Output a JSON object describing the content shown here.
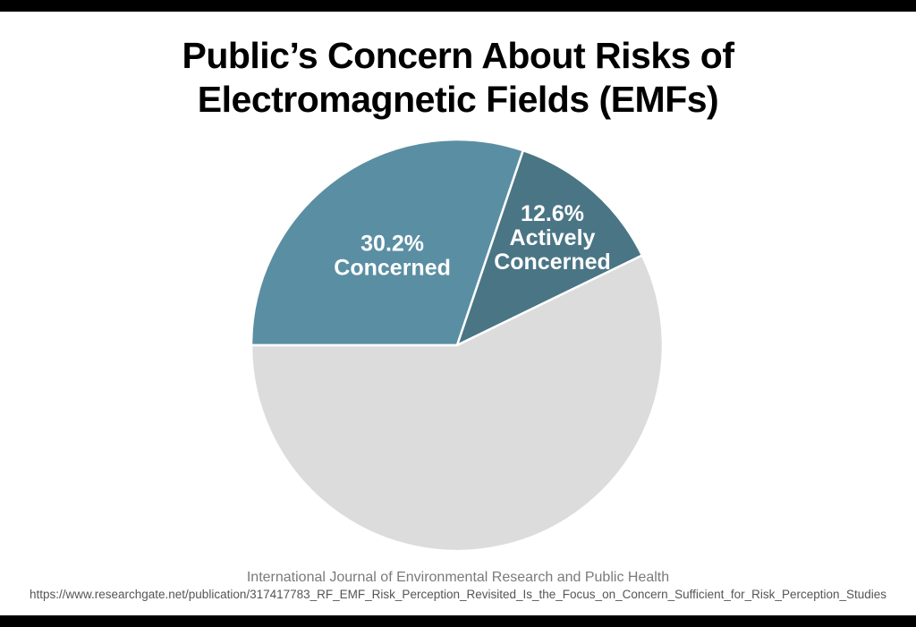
{
  "chart_data": {
    "type": "pie",
    "title_lines": [
      "Public’s Concern About Risks of",
      "Electromagnetic Fields (EMFs)"
    ],
    "slices": [
      {
        "value": 30.2,
        "label_lines": [
          "30.2%",
          "Concerned"
        ],
        "color": "#5a8ea3"
      },
      {
        "value": 12.6,
        "label_lines": [
          "12.6%",
          "Actively",
          "Concerned"
        ],
        "color": "#4a7585"
      },
      {
        "value": 57.2,
        "label_lines": [],
        "color": "#dcdcdc"
      }
    ],
    "legend": "none"
  },
  "source": {
    "journal": "International Journal of Environmental Research and Public Health",
    "url": "https://www.researchgate.net/publication/317417783_RF_EMF_Risk_Perception_Revisited_Is_the_Focus_on_Concern_Sufficient_for_Risk_Perception_Studies"
  }
}
